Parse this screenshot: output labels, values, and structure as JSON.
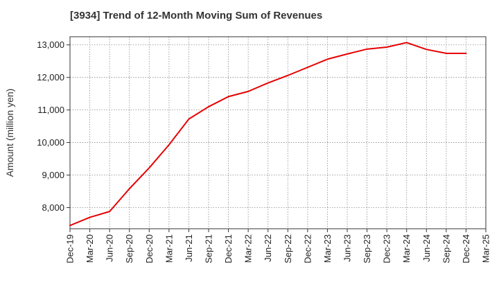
{
  "chart_data": {
    "type": "line",
    "title": "[3934]  Trend of 12-Month Moving Sum of Revenues",
    "xlabel": "",
    "ylabel": "Amount (million yen)",
    "ylim": [
      7350,
      13250
    ],
    "y_ticks": [
      8000,
      9000,
      10000,
      11000,
      12000,
      13000
    ],
    "y_tick_labels": [
      "8,000",
      "9,000",
      "10,000",
      "11,000",
      "12,000",
      "13,000"
    ],
    "x_tick_labels": [
      "Dec-19",
      "Mar-20",
      "Jun-20",
      "Sep-20",
      "Dec-20",
      "Mar-21",
      "Jun-21",
      "Sep-21",
      "Dec-21",
      "Mar-22",
      "Jun-22",
      "Sep-22",
      "Dec-22",
      "Mar-23",
      "Jun-23",
      "Sep-23",
      "Dec-23",
      "Mar-24",
      "Jun-24",
      "Sep-24",
      "Dec-24",
      "Mar-25"
    ],
    "grid": true,
    "line_color": "#e60000",
    "series": [
      {
        "x": [
          "Dec-19",
          "Mar-20",
          "Jun-20",
          "Sep-20",
          "Dec-20",
          "Mar-21",
          "Jun-21",
          "Sep-21",
          "Dec-21",
          "Mar-22",
          "Jun-22",
          "Sep-22",
          "Dec-22",
          "Mar-23",
          "Jun-23",
          "Sep-23",
          "Dec-23",
          "Mar-24",
          "Jun-24",
          "Sep-24",
          "Dec-24"
        ],
        "values": [
          7450,
          7700,
          7880,
          8580,
          9220,
          9930,
          10720,
          11100,
          11410,
          11570,
          11830,
          12060,
          12310,
          12560,
          12720,
          12870,
          12930,
          13070,
          12860,
          12740,
          12740
        ]
      }
    ]
  }
}
